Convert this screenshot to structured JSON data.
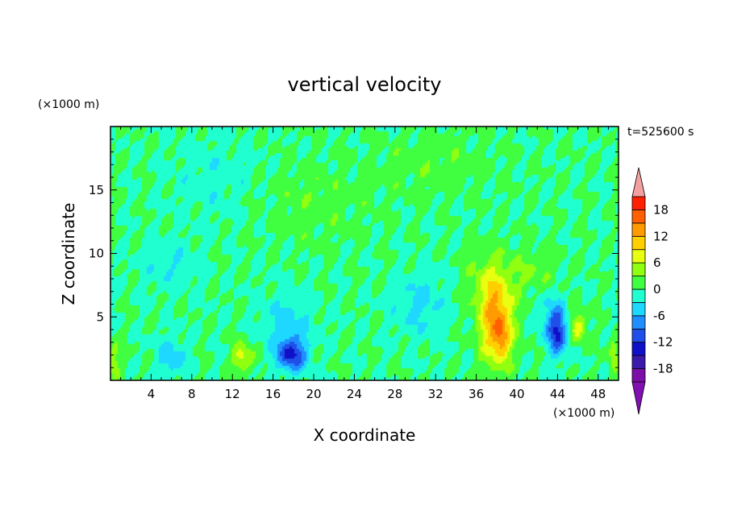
{
  "chart_data": {
    "type": "heatmap",
    "title": "vertical velocity",
    "xlabel": "X coordinate",
    "ylabel": "Z coordinate",
    "x_unit": "(×1000 m)",
    "y_unit": "(×1000 m)",
    "time_label": "t=525600 s",
    "xlim": [
      0,
      50
    ],
    "ylim": [
      0,
      20
    ],
    "x_ticks": [
      4,
      8,
      12,
      16,
      20,
      24,
      28,
      32,
      36,
      40,
      44,
      48
    ],
    "y_ticks": [
      5,
      10,
      15
    ],
    "colorbar": {
      "levels": [
        -21,
        -18,
        -15,
        -12,
        -9,
        -6,
        -3,
        0,
        3,
        6,
        9,
        12,
        15,
        18,
        21
      ],
      "tick_labels": [
        18,
        12,
        6,
        0,
        -6,
        -12,
        -18
      ],
      "colors": [
        "#7b0fa8",
        "#3a1aa8",
        "#1010c8",
        "#1f4fe8",
        "#1f8fff",
        "#1fd8ff",
        "#20ffd0",
        "#40ff40",
        "#90ff10",
        "#e8ff10",
        "#ffd000",
        "#ff9a00",
        "#ff6000",
        "#ff2000",
        "#f0a0a0"
      ],
      "under_color": "#8010b0",
      "over_color": "#f4a0a0"
    },
    "features": [
      {
        "x": 38.0,
        "z": 4.5,
        "value": 14,
        "sx": 1.6,
        "sz": 3.2
      },
      {
        "x": 38.5,
        "z": 3.2,
        "value": 5,
        "sx": 0.7,
        "sz": 1.2
      },
      {
        "x": 37.0,
        "z": 8.0,
        "value": 4,
        "sx": 2.0,
        "sz": 2.5
      },
      {
        "x": 41.5,
        "z": 8.5,
        "value": 3,
        "sx": 2.5,
        "sz": 2.0
      },
      {
        "x": 46.0,
        "z": 4.2,
        "value": 8,
        "sx": 0.8,
        "sz": 1.2
      },
      {
        "x": 44.0,
        "z": 3.8,
        "value": -12,
        "sx": 1.0,
        "sz": 1.8
      },
      {
        "x": 43.0,
        "z": 5.5,
        "value": -3,
        "sx": 1.4,
        "sz": 2.0
      },
      {
        "x": 17.8,
        "z": 2.0,
        "value": -12,
        "sx": 1.4,
        "sz": 1.3
      },
      {
        "x": 17.5,
        "z": 4.5,
        "value": -4,
        "sx": 2.5,
        "sz": 2.5
      },
      {
        "x": 13.0,
        "z": 1.8,
        "value": 8,
        "sx": 1.0,
        "sz": 1.1
      },
      {
        "x": 6.0,
        "z": 1.8,
        "value": -5,
        "sx": 1.5,
        "sz": 1.5
      },
      {
        "x": 30.5,
        "z": 6.0,
        "value": -4,
        "sx": 2.5,
        "sz": 2.5
      },
      {
        "x": 0.3,
        "z": 1.5,
        "value": 5,
        "sx": 0.6,
        "sz": 1.5
      },
      {
        "x": 49.5,
        "z": 2.0,
        "value": 5,
        "sx": 0.5,
        "sz": 1.5
      },
      {
        "x": 6.0,
        "z": 9.0,
        "value": -2.5,
        "sx": 3.0,
        "sz": 2.0
      },
      {
        "x": 20.0,
        "z": 14.0,
        "value": 2.0,
        "sx": 5.0,
        "sz": 3.0
      },
      {
        "x": 10.0,
        "z": 16.0,
        "value": -2.0,
        "sx": 4.0,
        "sz": 3.0
      },
      {
        "x": 32.0,
        "z": 17.0,
        "value": 2.0,
        "sx": 6.0,
        "sz": 2.5
      }
    ]
  }
}
